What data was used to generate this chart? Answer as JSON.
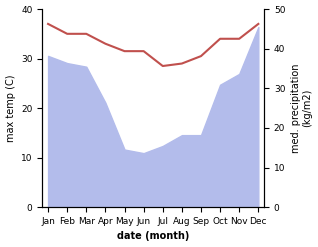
{
  "months": [
    "Jan",
    "Feb",
    "Mar",
    "Apr",
    "May",
    "Jun",
    "Jul",
    "Aug",
    "Sep",
    "Oct",
    "Nov",
    "Dec"
  ],
  "x": [
    0,
    1,
    2,
    3,
    4,
    5,
    6,
    7,
    8,
    9,
    10,
    11
  ],
  "temp_max": [
    37,
    35,
    35,
    33,
    31.5,
    31.5,
    28.5,
    29,
    30.5,
    34,
    34,
    37
  ],
  "precip": [
    210,
    200,
    195,
    145,
    80,
    75,
    85,
    100,
    100,
    170,
    185,
    250
  ],
  "fill_color": "#b3bceb",
  "line_color": "#c0504d",
  "temp_ylim": [
    0,
    40
  ],
  "precip_ylim": [
    0,
    275
  ],
  "precip_yticks": [
    0,
    10,
    20,
    30,
    40,
    50
  ],
  "precip_ytick_vals": [
    0,
    55,
    110,
    165,
    220,
    275
  ],
  "temp_yticks": [
    0,
    10,
    20,
    30,
    40
  ],
  "xlabel": "date (month)",
  "ylabel_left": "max temp (C)",
  "ylabel_right": "med. precipitation\n(kg/m2)",
  "label_fontsize": 7,
  "tick_fontsize": 6.5
}
